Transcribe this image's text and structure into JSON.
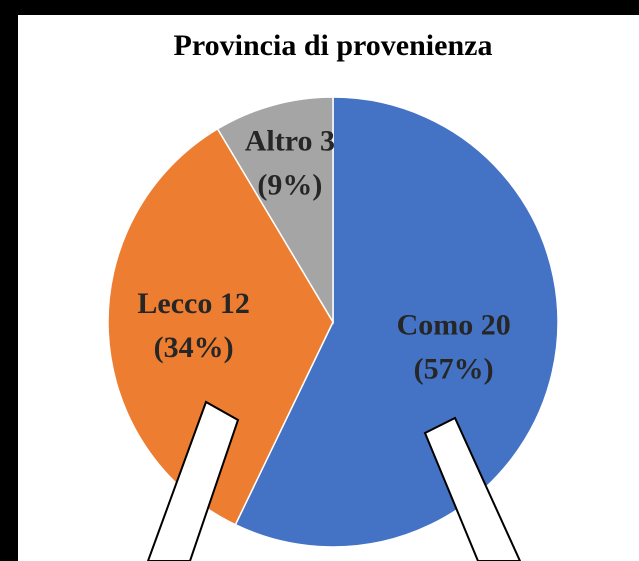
{
  "chart_data": {
    "type": "pie",
    "title": "Provincia di provenienza",
    "categories": [
      "Como",
      "Lecco",
      "Altro"
    ],
    "values": [
      20,
      12,
      3
    ],
    "value_labels": [
      [
        "Como 20",
        "(57%)"
      ],
      [
        "Lecco 12",
        "(34%)"
      ],
      [
        "Altro 3",
        "(9%)"
      ]
    ],
    "colors": [
      "#4472c4",
      "#ed7d31",
      "#a5a5a5"
    ]
  }
}
